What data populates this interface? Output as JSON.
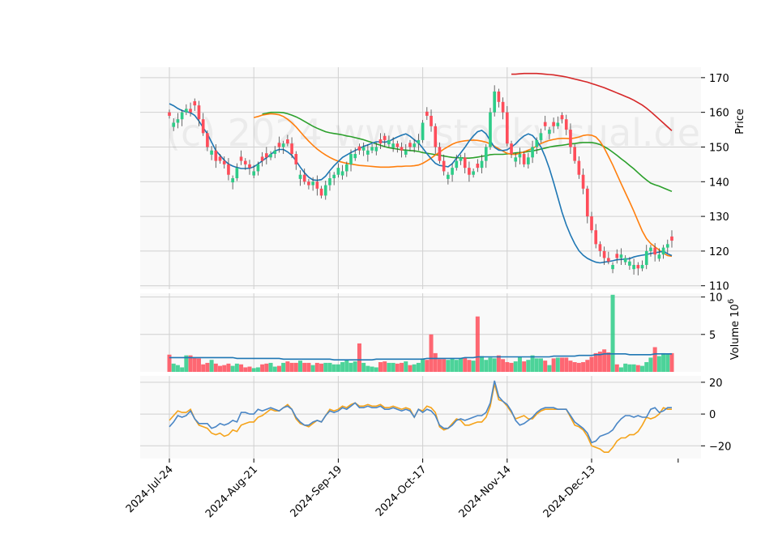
{
  "watermark": "(c) 2024 www.stockvisual.de",
  "chart_data": {
    "type": "candlestick",
    "colors": {
      "up": "#2ecc88",
      "down": "#ff4d5a",
      "sma_fast": "#1f77b4",
      "sma_mid": "#ff7f0e",
      "sma_slow": "#2ca02c",
      "sma_long": "#d62728",
      "osc_a": "#4a86c6",
      "osc_b": "#f5a31a",
      "panel_bg": "#f9f9f9",
      "grid": "#d0d0d0"
    },
    "x_tick_labels": [
      "2024-Jul-24",
      "2024-Aug-21",
      "2024-Sep-19",
      "2024-Oct-17",
      "2024-Nov-14",
      "2024-Dec-13"
    ],
    "x_tick_index": [
      0,
      20,
      40,
      60,
      80,
      100
    ],
    "price_panel": {
      "ylabel": "Price",
      "ylim": [
        109,
        173
      ],
      "yticks": [
        110,
        120,
        130,
        140,
        150,
        160,
        170
      ],
      "closes": [
        159,
        157,
        158,
        160,
        161,
        160,
        162,
        158,
        154,
        150,
        149,
        146,
        146,
        145,
        142,
        141,
        144,
        146,
        145,
        144,
        143,
        145,
        146,
        147,
        148,
        149,
        150,
        151,
        151,
        148,
        145,
        142,
        140,
        139,
        140,
        138,
        136,
        139,
        141,
        142,
        144,
        143,
        145,
        148,
        148,
        149,
        150,
        149,
        150,
        150,
        151,
        152,
        152,
        151,
        150,
        149,
        149,
        150,
        151,
        152,
        157,
        159,
        156,
        150,
        146,
        143,
        142,
        144,
        146,
        147,
        144,
        142,
        143,
        144,
        146,
        150,
        160,
        166,
        163,
        160,
        151,
        148,
        147,
        148,
        145,
        147,
        150,
        152,
        154,
        156,
        155,
        156,
        157,
        158,
        155,
        150,
        146,
        142,
        138,
        130,
        126,
        122,
        120,
        118,
        117,
        116,
        118,
        119,
        118,
        117,
        116,
        115,
        116,
        120,
        121,
        119,
        119,
        121,
        122,
        123
      ],
      "sma_fast": [
        162.5,
        161.9,
        161.1,
        160.5,
        160.2,
        159.9,
        159.1,
        157.5,
        155.6,
        153.8,
        151.4,
        149.0,
        147.6,
        146.2,
        145.1,
        144.5,
        144.1,
        143.8,
        143.8,
        143.9,
        144.3,
        145.1,
        146.0,
        146.9,
        147.8,
        148.9,
        149.3,
        149.3,
        148.6,
        147.6,
        146.0,
        144.2,
        142.6,
        141.3,
        140.5,
        140.4,
        140.6,
        141.6,
        143.2,
        144.6,
        145.8,
        147.0,
        147.7,
        148.4,
        149.0,
        149.6,
        150.2,
        150.6,
        151.1,
        151.5,
        151.5,
        151.4,
        151.6,
        152.3,
        152.9,
        153.4,
        153.8,
        153.1,
        152.1,
        151.2,
        149.7,
        148.1,
        146.6,
        145.3,
        144.7,
        144.5,
        144.3,
        145.2,
        146.8,
        148.3,
        149.9,
        151.7,
        153.2,
        154.4,
        154.8,
        153.8,
        151.8,
        149.9,
        149.1,
        149.0,
        149.2,
        150.0,
        150.9,
        152.2,
        153.2,
        153.8,
        153.3,
        151.9,
        150.0,
        147.2,
        143.8,
        139.8,
        135.5,
        131.2,
        127.6,
        124.6,
        122.1,
        120.1,
        118.8,
        117.9,
        117.3,
        116.8,
        116.6,
        116.8,
        117.0,
        117.2,
        117.5,
        117.6,
        117.7,
        117.8,
        118.3,
        118.6,
        118.8,
        119.0,
        119.3,
        119.5,
        119.7,
        120.0,
        119.2,
        118.7
      ],
      "sma_mid": [
        158.5,
        158.8,
        159.2,
        159.4,
        159.6,
        159.5,
        159.3,
        158.8,
        158.0,
        157.0,
        155.8,
        154.4,
        153.0,
        151.7,
        150.5,
        149.4,
        148.5,
        147.7,
        147.0,
        146.4,
        145.9,
        145.6,
        145.3,
        145.1,
        144.9,
        144.7,
        144.6,
        144.5,
        144.4,
        144.3,
        144.2,
        144.2,
        144.2,
        144.3,
        144.4,
        144.4,
        144.5,
        144.5,
        144.6,
        144.8,
        145.3,
        146.0,
        146.8,
        147.7,
        148.5,
        149.4,
        150.1,
        150.8,
        151.3,
        151.6,
        151.8,
        151.9,
        152.0,
        151.9,
        151.7,
        151.4,
        150.9,
        150.2,
        149.5,
        148.8,
        148.2,
        147.9,
        147.9,
        148.2,
        148.6,
        149.1,
        149.6,
        150.3,
        151.0,
        151.5,
        151.9,
        152.2,
        152.4,
        152.5,
        152.5,
        152.4,
        152.6,
        152.9,
        153.3,
        153.5,
        153.4,
        152.9,
        151.6,
        149.7,
        147.3,
        144.8,
        142.1,
        139.4,
        136.8,
        134.2,
        131.5,
        128.6,
        125.8,
        123.6,
        122.2,
        121.2,
        120.3,
        119.4,
        118.7,
        118.5
      ],
      "sma_slow": [
        159.5,
        159.7,
        160.0,
        160.0,
        160.0,
        159.9,
        159.6,
        159.2,
        158.7,
        158.1,
        157.4,
        156.7,
        156.0,
        155.4,
        154.9,
        154.4,
        154.1,
        153.9,
        153.7,
        153.5,
        153.2,
        153.0,
        152.7,
        152.4,
        152.1,
        151.7,
        151.3,
        150.9,
        150.5,
        150.1,
        149.8,
        149.6,
        149.4,
        149.2,
        149.1,
        149.0,
        148.9,
        148.7,
        148.4,
        148.2,
        148.0,
        147.8,
        147.6,
        147.4,
        147.2,
        147.0,
        146.9,
        146.9,
        146.8,
        146.8,
        146.9,
        147.1,
        147.3,
        147.5,
        147.8,
        147.9,
        147.9,
        147.9,
        148.0,
        148.1,
        148.3,
        148.4,
        148.5,
        148.7,
        148.9,
        149.1,
        149.4,
        149.7,
        150.0,
        150.2,
        150.4,
        150.5,
        150.7,
        150.9,
        151.0,
        151.2,
        151.3,
        151.3,
        151.3,
        151.1,
        150.7,
        150.1,
        149.4,
        148.5,
        147.6,
        146.6,
        145.7,
        144.7,
        143.7,
        142.6,
        141.5,
        140.5,
        139.6,
        139.1,
        138.7,
        138.2,
        137.7,
        137.2
      ],
      "sma_long": [
        171.0,
        171.0,
        171.1,
        171.2,
        171.2,
        171.2,
        171.2,
        171.1,
        171.0,
        170.9,
        170.8,
        170.6,
        170.4,
        170.2,
        169.9,
        169.6,
        169.3,
        169.0,
        168.7,
        168.3,
        167.9,
        167.5,
        167.1,
        166.6,
        166.1,
        165.6,
        165.1,
        164.6,
        164.1,
        163.5,
        162.8,
        162.1,
        161.2,
        160.2,
        159.1,
        158.0,
        156.9,
        155.8,
        154.7
      ]
    },
    "volume_panel": {
      "ylabel": "Volume",
      "scale_label": "10",
      "scale_exponent": "6",
      "ylim": [
        0,
        10.5
      ],
      "yticks": [
        5,
        10
      ],
      "ytick_labels": [
        "5",
        "10"
      ],
      "volumes": [
        2.3,
        1.1,
        0.9,
        0.6,
        2.2,
        2.2,
        1.9,
        1.8,
        1.0,
        1.2,
        1.6,
        1.1,
        0.8,
        0.9,
        1.1,
        0.8,
        1.1,
        1.0,
        0.6,
        0.7,
        0.5,
        0.6,
        1.0,
        1.1,
        1.2,
        0.7,
        0.8,
        1.2,
        1.4,
        1.2,
        1.2,
        1.5,
        1.2,
        1.2,
        0.9,
        1.2,
        1.1,
        1.2,
        1.2,
        1.0,
        1.0,
        1.3,
        1.6,
        1.2,
        1.4,
        3.8,
        1.2,
        0.8,
        0.7,
        0.6,
        1.3,
        1.4,
        1.2,
        1.2,
        1.1,
        1.2,
        1.4,
        0.9,
        1.0,
        1.2,
        1.8,
        1.6,
        5.0,
        2.5,
        1.7,
        1.7,
        1.6,
        1.8,
        1.6,
        1.8,
        1.9,
        1.6,
        1.5,
        7.4,
        2.1,
        1.6,
        1.9,
        1.8,
        2.2,
        1.7,
        1.3,
        1.2,
        1.4,
        2.0,
        1.4,
        1.6,
        2.2,
        1.8,
        1.8,
        1.5,
        0.9,
        1.8,
        1.9,
        1.9,
        1.9,
        1.5,
        1.3,
        1.2,
        1.3,
        1.6,
        2.0,
        2.5,
        2.7,
        3.0,
        2.6,
        10.3,
        1.0,
        0.6,
        1.1,
        1.0,
        1.0,
        0.9,
        0.8,
        1.3,
        1.9,
        3.3,
        2.1,
        2.5,
        2.4,
        2.5
      ],
      "up_flags": [
        0,
        1,
        1,
        1,
        1,
        0,
        0,
        0,
        0,
        0,
        1,
        0,
        0,
        0,
        0,
        1,
        1,
        0,
        0,
        0,
        1,
        1,
        0,
        0,
        1,
        1,
        0,
        1,
        0,
        0,
        0,
        1,
        0,
        0,
        1,
        0,
        0,
        1,
        1,
        1,
        1,
        1,
        1,
        1,
        1,
        0,
        1,
        1,
        1,
        1,
        0,
        0,
        1,
        1,
        0,
        0,
        1,
        0,
        1,
        1,
        1,
        0,
        0,
        0,
        0,
        0,
        1,
        1,
        1,
        1,
        0,
        0,
        1,
        0,
        1,
        1,
        1,
        1,
        0,
        0,
        0,
        0,
        1,
        1,
        0,
        1,
        1,
        1,
        1,
        0,
        1,
        0,
        1,
        0,
        0,
        0,
        0,
        0,
        0,
        0,
        0,
        0,
        0,
        0,
        0,
        1,
        0,
        1,
        1,
        1,
        1,
        0,
        1,
        1,
        1,
        0,
        1,
        1,
        1,
        0
      ],
      "avg_volume": [
        1.9,
        1.9,
        1.9,
        1.9,
        1.9,
        1.9,
        1.9,
        1.9,
        1.9,
        1.9,
        1.9,
        1.9,
        1.9,
        1.9,
        1.9,
        1.9,
        1.8,
        1.8,
        1.8,
        1.8,
        1.8,
        1.8,
        1.8,
        1.8,
        1.8,
        1.8,
        1.8,
        1.7,
        1.7,
        1.7,
        1.7,
        1.7,
        1.7,
        1.7,
        1.7,
        1.7,
        1.7,
        1.7,
        1.7,
        1.6,
        1.6,
        1.6,
        1.6,
        1.6,
        1.6,
        1.6,
        1.6,
        1.6,
        1.6,
        1.7,
        1.7,
        1.7,
        1.7,
        1.7,
        1.7,
        1.7,
        1.7,
        1.7,
        1.7,
        1.7,
        1.7,
        1.8,
        1.8,
        1.8,
        1.8,
        1.8,
        1.8,
        1.8,
        1.8,
        1.8,
        1.9,
        1.9,
        1.9,
        2.0,
        2.0,
        2.0,
        2.0,
        2.0,
        2.0,
        2.0,
        2.0,
        2.0,
        2.0,
        2.0,
        2.0,
        2.0,
        2.0,
        2.0,
        2.0,
        2.0,
        2.0,
        2.1,
        2.1,
        2.1,
        2.1,
        2.1,
        2.1,
        2.2,
        2.2,
        2.2,
        2.2,
        2.3,
        2.3,
        2.4,
        2.4,
        2.4,
        2.4,
        2.4,
        2.4,
        2.3,
        2.3,
        2.3,
        2.3,
        2.3,
        2.3,
        2.4,
        2.4,
        2.4,
        2.4,
        2.4
      ]
    },
    "oscillator_panel": {
      "ylim": [
        -28,
        24
      ],
      "yticks": [
        -20,
        0,
        20
      ],
      "ytick_labels": [
        "−20",
        "0",
        "20"
      ],
      "line_a": [
        -8,
        -5,
        -1,
        -2,
        -1,
        2,
        -3,
        -6,
        -6,
        -6,
        -9,
        -8,
        -6,
        -7,
        -6,
        -4,
        -5,
        1,
        1,
        0,
        0,
        3,
        2,
        3,
        4,
        3,
        2,
        4,
        5,
        3,
        -2,
        -5,
        -7,
        -7,
        -5,
        -4,
        -5,
        -1,
        2,
        1,
        2,
        4,
        3,
        5,
        7,
        4,
        4,
        5,
        4,
        4,
        5,
        3,
        3,
        4,
        3,
        2,
        3,
        2,
        -2,
        3,
        1,
        3,
        2,
        -1,
        -7,
        -9,
        -9,
        -7,
        -4,
        -3,
        -4,
        -3,
        -2,
        -1,
        -1,
        1,
        7,
        21,
        11,
        8,
        6,
        2,
        -4,
        -7,
        -6,
        -4,
        -2,
        1,
        3,
        4,
        4,
        4,
        3,
        3,
        3,
        -1,
        -5,
        -7,
        -9,
        -12,
        -18,
        -17,
        -14,
        -13,
        -12,
        -10,
        -6,
        -3,
        -1,
        -1,
        -2,
        -1,
        -2,
        -2,
        3,
        4,
        1,
        2,
        4,
        4
      ],
      "line_b": [
        -4,
        -1,
        2,
        1,
        1,
        3,
        -3,
        -7,
        -8,
        -9,
        -12,
        -13,
        -12,
        -14,
        -13,
        -10,
        -11,
        -7,
        -6,
        -5,
        -5,
        -2,
        -1,
        1,
        3,
        2,
        2,
        4,
        6,
        3,
        -3,
        -6,
        -7,
        -8,
        -6,
        -4,
        -5,
        -1,
        3,
        2,
        3,
        5,
        4,
        6,
        7,
        5,
        5,
        6,
        5,
        5,
        6,
        4,
        4,
        5,
        4,
        3,
        4,
        3,
        -2,
        3,
        2,
        5,
        4,
        1,
        -8,
        -10,
        -9,
        -6,
        -3,
        -4,
        -7,
        -7,
        -6,
        -5,
        -5,
        -2,
        5,
        19,
        9,
        8,
        5,
        1,
        -3,
        -2,
        -1,
        -3,
        -3,
        0,
        2,
        3,
        3,
        3,
        3,
        3,
        3,
        -2,
        -7,
        -8,
        -10,
        -14,
        -20,
        -21,
        -22,
        -24,
        -24,
        -21,
        -17,
        -15,
        -15,
        -13,
        -13,
        -11,
        -7,
        -2,
        -3,
        -2,
        0,
        4,
        3,
        3
      ]
    }
  }
}
